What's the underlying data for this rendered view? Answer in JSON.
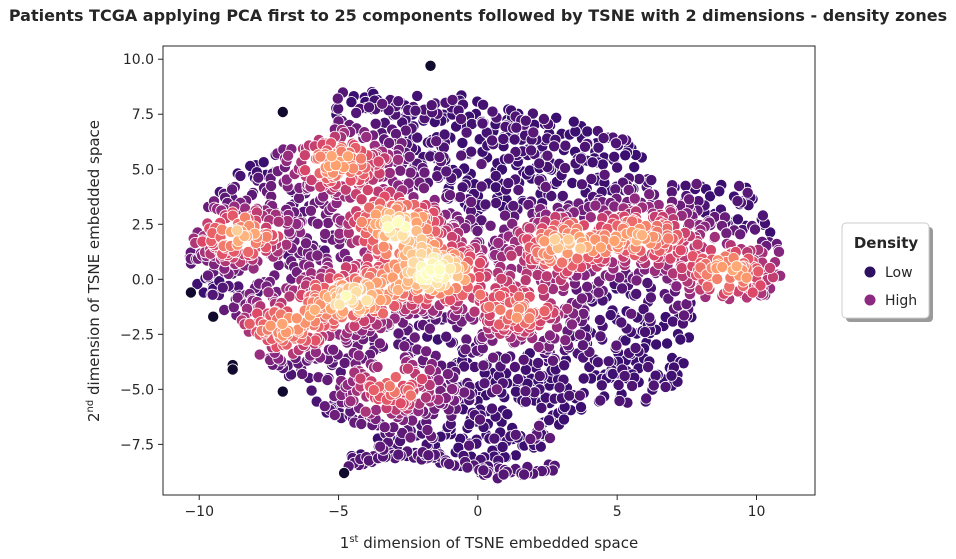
{
  "chart_data": {
    "type": "scatter",
    "title": "Patients TCGA applying PCA first to 25 components followed by TSNE with 2 dimensions - density zones",
    "xlabel": {
      "ordinal": "1",
      "superscript": "st",
      "rest": " dimension of TSNE embedded space"
    },
    "ylabel": {
      "ordinal": "2",
      "superscript": "nd",
      "rest": " dimension of TSNE embedded space"
    },
    "xlim": [
      -11.3,
      12.1
    ],
    "ylim": [
      -9.8,
      10.6
    ],
    "xticks": [
      -10,
      -5,
      0,
      5,
      10
    ],
    "xtick_labels": [
      "−10",
      "−5",
      "0",
      "5",
      "10"
    ],
    "yticks": [
      -7.5,
      -5.0,
      -2.5,
      0.0,
      2.5,
      5.0,
      7.5,
      10.0
    ],
    "ytick_labels": [
      "−7.5",
      "−5.0",
      "−2.5",
      "0.0",
      "2.5",
      "5.0",
      "7.5",
      "10.0"
    ],
    "grid": false,
    "colormap": [
      "#000004",
      "#3b0f70",
      "#8c2981",
      "#de4968",
      "#fe9f6d",
      "#fcfdbf"
    ],
    "density_centers": [
      {
        "x": -1.5,
        "y": 0.3,
        "strength": 1.0
      },
      {
        "x": -3.0,
        "y": 2.5,
        "strength": 0.9
      },
      {
        "x": -4.5,
        "y": -0.8,
        "strength": 0.85
      },
      {
        "x": -5.0,
        "y": 5.3,
        "strength": 0.75
      },
      {
        "x": -8.5,
        "y": 2.0,
        "strength": 0.75
      },
      {
        "x": -7.0,
        "y": -2.2,
        "strength": 0.7
      },
      {
        "x": -3.0,
        "y": -5.0,
        "strength": 0.6
      },
      {
        "x": 3.0,
        "y": 1.5,
        "strength": 0.8
      },
      {
        "x": 6.0,
        "y": 2.0,
        "strength": 0.7
      },
      {
        "x": 9.0,
        "y": 0.3,
        "strength": 0.75
      },
      {
        "x": 1.5,
        "y": -1.5,
        "strength": 0.65
      }
    ],
    "outlier_points": [
      {
        "x": -1.7,
        "y": 9.7
      },
      {
        "x": -7.0,
        "y": 7.6
      },
      {
        "x": -10.3,
        "y": -0.6
      },
      {
        "x": -9.5,
        "y": -1.7
      },
      {
        "x": -8.8,
        "y": -3.9
      },
      {
        "x": -8.8,
        "y": -4.1
      },
      {
        "x": -7.0,
        "y": -5.1
      },
      {
        "x": -4.8,
        "y": -8.8
      }
    ],
    "legend": {
      "title": "Density",
      "position": "right",
      "entries": [
        {
          "label": "Low",
          "color": "#2d1160"
        },
        {
          "label": "High",
          "color": "#8c2981"
        }
      ]
    }
  }
}
